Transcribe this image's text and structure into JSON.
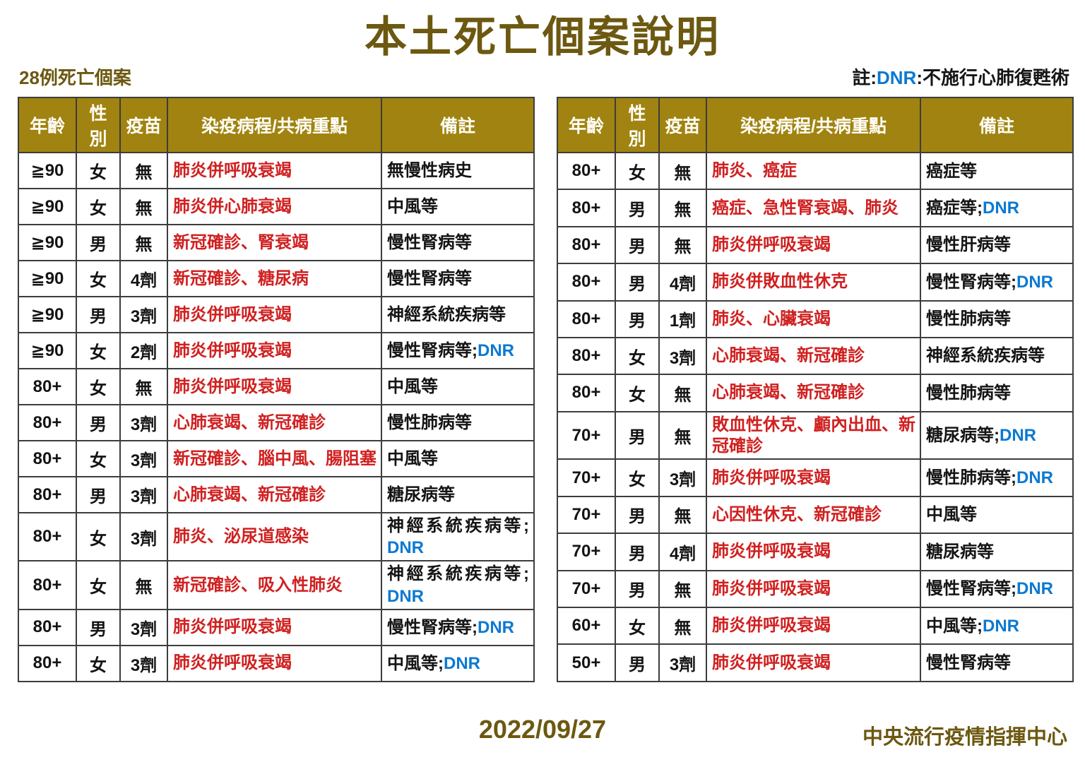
{
  "page": {
    "title": "本土死亡個案說明",
    "subtitle": "28例死亡個案",
    "note_prefix": "註:",
    "dnr_label": "DNR",
    "note_suffix": ":不施行心肺復甦術",
    "footer_date": "2022/09/27",
    "footer_org": "中央流行疫情指揮中心"
  },
  "colors": {
    "header_bg": "#A08310",
    "title_text": "#6C5810",
    "disease_red": "#D02020",
    "dnr_blue": "#0C79D2"
  },
  "columns": [
    "年齡",
    "性別",
    "疫苗",
    "染疫病程/共病重點",
    "備註"
  ],
  "tables": {
    "left": {
      "rows": [
        {
          "age": "≧90",
          "sex": "女",
          "vaccine": "無",
          "course": "肺炎併呼吸衰竭",
          "remark": "無慢性病史",
          "dnr": false,
          "dnr_newline": false
        },
        {
          "age": "≧90",
          "sex": "女",
          "vaccine": "無",
          "course": "肺炎併心肺衰竭",
          "remark": "中風等",
          "dnr": false,
          "dnr_newline": false
        },
        {
          "age": "≧90",
          "sex": "男",
          "vaccine": "無",
          "course": "新冠確診、腎衰竭",
          "remark": "慢性腎病等",
          "dnr": false,
          "dnr_newline": false
        },
        {
          "age": "≧90",
          "sex": "女",
          "vaccine": "4劑",
          "course": "新冠確診、糖尿病",
          "remark": "慢性腎病等",
          "dnr": false,
          "dnr_newline": false
        },
        {
          "age": "≧90",
          "sex": "男",
          "vaccine": "3劑",
          "course": "肺炎併呼吸衰竭",
          "remark": "神經系統疾病等",
          "dnr": false,
          "dnr_newline": false
        },
        {
          "age": "≧90",
          "sex": "女",
          "vaccine": "2劑",
          "course": "肺炎併呼吸衰竭",
          "remark": "慢性腎病等;",
          "dnr": true,
          "dnr_newline": false
        },
        {
          "age": "80+",
          "sex": "女",
          "vaccine": "無",
          "course": "肺炎併呼吸衰竭",
          "remark": "中風等",
          "dnr": false,
          "dnr_newline": false
        },
        {
          "age": "80+",
          "sex": "男",
          "vaccine": "3劑",
          "course": "心肺衰竭、新冠確診",
          "remark": "慢性肺病等",
          "dnr": false,
          "dnr_newline": false
        },
        {
          "age": "80+",
          "sex": "女",
          "vaccine": "3劑",
          "course": "新冠確診、腦中風、腸阻塞",
          "remark": "中風等",
          "dnr": false,
          "dnr_newline": false
        },
        {
          "age": "80+",
          "sex": "男",
          "vaccine": "3劑",
          "course": "心肺衰竭、新冠確診",
          "remark": "糖尿病等",
          "dnr": false,
          "dnr_newline": false
        },
        {
          "age": "80+",
          "sex": "女",
          "vaccine": "3劑",
          "course": "肺炎、泌尿道感染",
          "remark": "神經系統疾病等;",
          "dnr": true,
          "dnr_newline": true
        },
        {
          "age": "80+",
          "sex": "女",
          "vaccine": "無",
          "course": "新冠確診、吸入性肺炎",
          "remark": "神經系統疾病等;",
          "dnr": true,
          "dnr_newline": true
        },
        {
          "age": "80+",
          "sex": "男",
          "vaccine": "3劑",
          "course": "肺炎併呼吸衰竭",
          "remark": "慢性腎病等;",
          "dnr": true,
          "dnr_newline": false
        },
        {
          "age": "80+",
          "sex": "女",
          "vaccine": "3劑",
          "course": "肺炎併呼吸衰竭",
          "remark": "中風等;",
          "dnr": true,
          "dnr_newline": false
        }
      ]
    },
    "right": {
      "rows": [
        {
          "age": "80+",
          "sex": "女",
          "vaccine": "無",
          "course": "肺炎、癌症",
          "remark": "癌症等",
          "dnr": false,
          "dnr_newline": false
        },
        {
          "age": "80+",
          "sex": "男",
          "vaccine": "無",
          "course": "癌症、急性腎衰竭、肺炎",
          "remark": "癌症等;",
          "dnr": true,
          "dnr_newline": false
        },
        {
          "age": "80+",
          "sex": "男",
          "vaccine": "無",
          "course": "肺炎併呼吸衰竭",
          "remark": "慢性肝病等",
          "dnr": false,
          "dnr_newline": false
        },
        {
          "age": "80+",
          "sex": "男",
          "vaccine": "4劑",
          "course": "肺炎併敗血性休克",
          "remark": "慢性腎病等;",
          "dnr": true,
          "dnr_newline": false
        },
        {
          "age": "80+",
          "sex": "男",
          "vaccine": "1劑",
          "course": "肺炎、心臟衰竭",
          "remark": "慢性肺病等",
          "dnr": false,
          "dnr_newline": false
        },
        {
          "age": "80+",
          "sex": "女",
          "vaccine": "3劑",
          "course": "心肺衰竭、新冠確診",
          "remark": "神經系統疾病等",
          "dnr": false,
          "dnr_newline": false
        },
        {
          "age": "80+",
          "sex": "女",
          "vaccine": "無",
          "course": "心肺衰竭、新冠確診",
          "remark": "慢性肺病等",
          "dnr": false,
          "dnr_newline": false
        },
        {
          "age": "70+",
          "sex": "男",
          "vaccine": "無",
          "course": "敗血性休克、顱內出血、新冠確診",
          "remark": "糖尿病等;",
          "dnr": true,
          "dnr_newline": false
        },
        {
          "age": "70+",
          "sex": "女",
          "vaccine": "3劑",
          "course": "肺炎併呼吸衰竭",
          "remark": "慢性肺病等;",
          "dnr": true,
          "dnr_newline": false
        },
        {
          "age": "70+",
          "sex": "男",
          "vaccine": "無",
          "course": "心因性休克、新冠確診",
          "remark": "中風等",
          "dnr": false,
          "dnr_newline": false
        },
        {
          "age": "70+",
          "sex": "男",
          "vaccine": "4劑",
          "course": "肺炎併呼吸衰竭",
          "remark": "糖尿病等",
          "dnr": false,
          "dnr_newline": false
        },
        {
          "age": "70+",
          "sex": "男",
          "vaccine": "無",
          "course": "肺炎併呼吸衰竭",
          "remark": "慢性腎病等;",
          "dnr": true,
          "dnr_newline": false
        },
        {
          "age": "60+",
          "sex": "女",
          "vaccine": "無",
          "course": "肺炎併呼吸衰竭",
          "remark": "中風等;",
          "dnr": true,
          "dnr_newline": false
        },
        {
          "age": "50+",
          "sex": "男",
          "vaccine": "3劑",
          "course": "肺炎併呼吸衰竭",
          "remark": "慢性腎病等",
          "dnr": false,
          "dnr_newline": false
        }
      ]
    }
  }
}
